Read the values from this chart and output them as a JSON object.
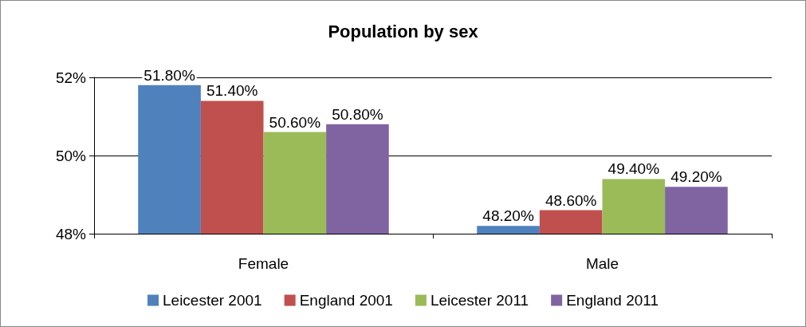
{
  "chart_data": {
    "type": "bar",
    "title": "Population by sex",
    "categories": [
      "Female",
      "Male"
    ],
    "series": [
      {
        "name": "Leicester 2001",
        "color": "#4f81bd",
        "values": [
          51.8,
          48.2
        ],
        "value_labels": [
          "51.80%",
          "48.20%"
        ]
      },
      {
        "name": "England 2001",
        "color": "#c0504d",
        "values": [
          51.4,
          48.6
        ],
        "value_labels": [
          "51.40%",
          "48.60%"
        ]
      },
      {
        "name": "Leicester 2011",
        "color": "#9bbb59",
        "values": [
          50.6,
          49.4
        ],
        "value_labels": [
          "50.60%",
          "49.40%"
        ]
      },
      {
        "name": "England 2011",
        "color": "#8064a2",
        "values": [
          50.8,
          49.2
        ],
        "value_labels": [
          "50.80%",
          "49.20%"
        ]
      }
    ],
    "ylim": [
      48,
      52
    ],
    "yticks": [
      {
        "value": 48,
        "label": "48%"
      },
      {
        "value": 50,
        "label": "50%"
      },
      {
        "value": 52,
        "label": "52%"
      }
    ],
    "grid": "y",
    "legend": "bottom"
  }
}
